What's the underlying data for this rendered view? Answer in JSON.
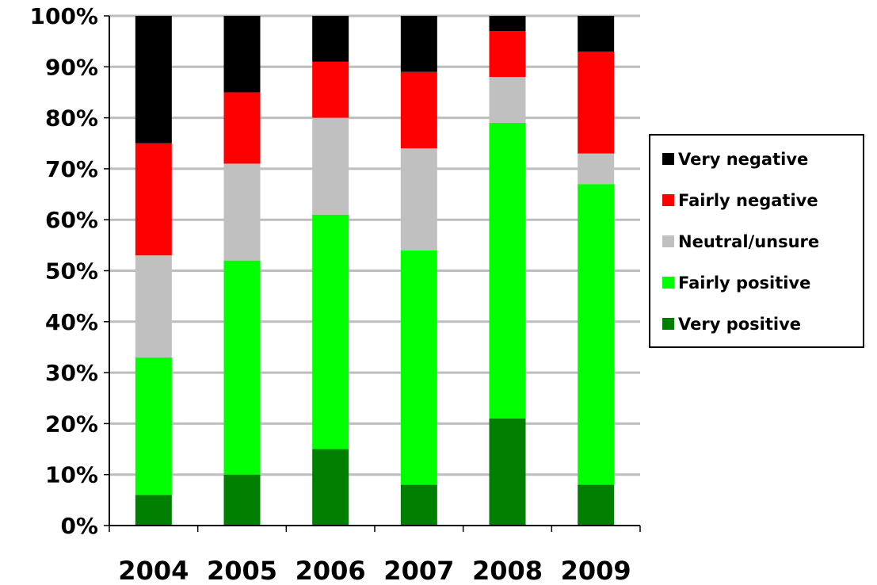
{
  "chart_data": {
    "type": "bar",
    "stacked": true,
    "categories": [
      "2004",
      "2005",
      "2006",
      "2007",
      "2008",
      "2009"
    ],
    "series": [
      {
        "name": "Very positive",
        "color": "#007f00",
        "values": [
          6,
          10,
          15,
          8,
          21,
          8
        ]
      },
      {
        "name": "Fairly positive",
        "color": "#00ff00",
        "values": [
          27,
          42,
          46,
          46,
          58,
          59
        ]
      },
      {
        "name": "Neutral/unsure",
        "color": "#c0c0c0",
        "values": [
          20,
          19,
          19,
          20,
          9,
          6
        ]
      },
      {
        "name": "Fairly negative",
        "color": "#ff0000",
        "values": [
          22,
          14,
          11,
          15,
          9,
          20
        ]
      },
      {
        "name": "Very negative",
        "color": "#000000",
        "values": [
          25,
          15,
          9,
          11,
          3,
          7
        ]
      }
    ],
    "yticks": [
      "0%",
      "10%",
      "20%",
      "30%",
      "40%",
      "50%",
      "60%",
      "70%",
      "80%",
      "90%",
      "100%"
    ],
    "ylim": [
      0,
      100
    ],
    "grid": true,
    "legend_position": "right",
    "legend_order": [
      "Very negative",
      "Fairly negative",
      "Neutral/unsure",
      "Fairly positive",
      "Very positive"
    ]
  }
}
